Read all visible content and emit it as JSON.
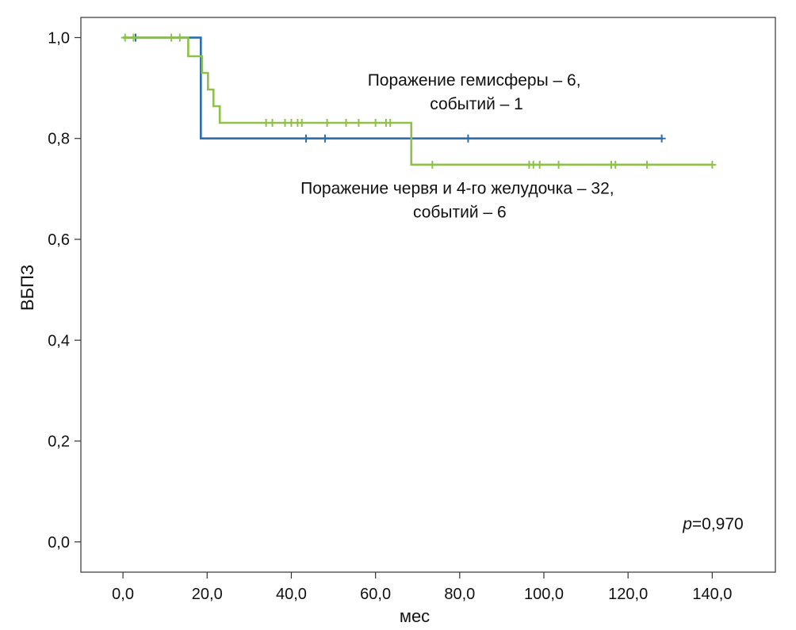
{
  "chart_data": {
    "type": "line",
    "xlabel": "мес",
    "ylabel": "ВБПЗ",
    "xlim": [
      -10,
      155
    ],
    "ylim": [
      -0.06,
      1.04
    ],
    "xticks": [
      0,
      20,
      40,
      60,
      80,
      100,
      120,
      140
    ],
    "xtick_labels": [
      "0,0",
      "20,0",
      "40,0",
      "60,0",
      "80,0",
      "100,0",
      "120,0",
      "140,0"
    ],
    "yticks": [
      0,
      0.2,
      0.4,
      0.6,
      0.8,
      1.0
    ],
    "ytick_labels": [
      "0,0",
      "0,2",
      "0,4",
      "0,6",
      "0,8",
      "1,0"
    ],
    "grid": false,
    "series": [
      {
        "name": "Поражение гемисферы – 6, событий – 1",
        "color": "#2a6db0",
        "steps": [
          [
            0,
            1.0
          ],
          [
            18.5,
            0.8
          ],
          [
            128,
            0.8
          ]
        ],
        "censored": [
          [
            3,
            1.0
          ],
          [
            43.5,
            0.8
          ],
          [
            48,
            0.8
          ],
          [
            82,
            0.8
          ],
          [
            128,
            0.8
          ]
        ]
      },
      {
        "name": "Поражение червя и 4-го желудочка – 32, событий – 6",
        "color": "#8fc14a",
        "steps": [
          [
            0,
            1.0
          ],
          [
            15.5,
            0.963
          ],
          [
            18.8,
            0.93
          ],
          [
            20.2,
            0.897
          ],
          [
            21.5,
            0.864
          ],
          [
            23,
            0.831
          ],
          [
            68.5,
            0.748
          ],
          [
            140,
            0.748
          ]
        ],
        "censored": [
          [
            0.5,
            1.0
          ],
          [
            2.5,
            1.0
          ],
          [
            11.5,
            1.0
          ],
          [
            13.5,
            1.0
          ],
          [
            34,
            0.831
          ],
          [
            35.5,
            0.831
          ],
          [
            38.5,
            0.831
          ],
          [
            40,
            0.831
          ],
          [
            41.5,
            0.831
          ],
          [
            42.5,
            0.831
          ],
          [
            48.5,
            0.831
          ],
          [
            53,
            0.831
          ],
          [
            56,
            0.831
          ],
          [
            60,
            0.831
          ],
          [
            62.5,
            0.831
          ],
          [
            63.5,
            0.831
          ],
          [
            73.5,
            0.748
          ],
          [
            96.5,
            0.748
          ],
          [
            97.5,
            0.748
          ],
          [
            99,
            0.748
          ],
          [
            103.5,
            0.748
          ],
          [
            116,
            0.748
          ],
          [
            117,
            0.748
          ],
          [
            124.5,
            0.748
          ],
          [
            140,
            0.748
          ]
        ]
      }
    ],
    "annotations": [
      {
        "lines": [
          "Поражение гемисферы – 6,",
          "событий – 1"
        ],
        "x": 84,
        "y": 0.905
      },
      {
        "lines": [
          "Поражение червя и 4-го желудочка – 32,",
          "событий – 6"
        ],
        "x": 80,
        "y": 0.69
      },
      {
        "p_prefix": "p",
        "p_value": "=0,970",
        "x": 133,
        "y": 0.025
      }
    ]
  }
}
